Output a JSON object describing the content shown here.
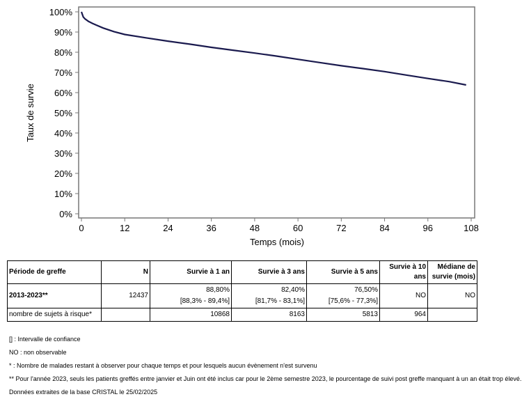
{
  "chart_data": {
    "type": "line",
    "xlabel": "Temps (mois)",
    "ylabel": "Taux de survie",
    "xlim": [
      0,
      108
    ],
    "ylim": [
      0,
      100
    ],
    "xticks": [
      "0",
      "12",
      "24",
      "36",
      "48",
      "60",
      "72",
      "84",
      "96",
      "108"
    ],
    "yticks": [
      "0%",
      "10%",
      "20%",
      "30%",
      "40%",
      "50%",
      "60%",
      "70%",
      "80%",
      "90%",
      "100%"
    ],
    "grid": false,
    "line_color": "#1a1a4e",
    "x": [
      0,
      0.5,
      1,
      2,
      3,
      4,
      6,
      9,
      12,
      18,
      24,
      30,
      36,
      42,
      48,
      54,
      60,
      66,
      72,
      78,
      84,
      90,
      96,
      102,
      106.6
    ],
    "y": [
      100,
      97.5,
      96.5,
      95.2,
      94.3,
      93.5,
      92,
      90.2,
      88.8,
      87.1,
      85.5,
      84,
      82.4,
      81,
      79.6,
      78.1,
      76.5,
      74.9,
      73.3,
      71.9,
      70.4,
      68.7,
      67,
      65.4,
      63.8
    ]
  },
  "table": {
    "headers": [
      "Période de greffe",
      "N",
      "Survie à 1 an",
      "Survie à 3 ans",
      "Survie à 5 ans",
      "Survie à 10 ans",
      "Médiane de survie (mois)"
    ],
    "row": {
      "period": "2013-2023**",
      "n": "12437",
      "s1": "88,80%",
      "s1ci": "[88,3% - 89,4%]",
      "s3": "82,40%",
      "s3ci": "[81,7% - 83,1%]",
      "s5": "76,50%",
      "s5ci": "[75,6% - 77,3%]",
      "s10": "NO",
      "median": "NO"
    },
    "risk": {
      "label": "nombre de sujets à risque*",
      "r1": "10868",
      "r3": "8163",
      "r5": "5813",
      "r10": "964"
    }
  },
  "notes": [
    "[] : Intervalle de confiance",
    "NO : non observable",
    "* : Nombre de malades restant à observer pour chaque temps et pour lesquels aucun évènement n'est survenu",
    "** Pour l'année 2023, seuls les patients greffés entre janvier et Juin ont été inclus car pour le 2ème semestre 2023, le pourcentage de suivi post greffe manquant à un an était trop élevé.",
    "Données extraites de la base CRISTAL le 25/02/2025"
  ]
}
